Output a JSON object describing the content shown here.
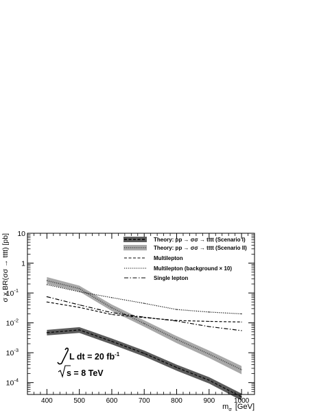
{
  "chart_data": {
    "type": "line",
    "ylabel": "σ x BR(σσ → tttt) [pb]",
    "xlabel": "m",
    "xlabel_sub": "σ",
    "xlabel_unit": "[GeV]",
    "xlim": [
      340,
      1040
    ],
    "ylim": [
      4e-05,
      10
    ],
    "yscale": "log",
    "grid": false,
    "legend_position": "top-right",
    "x_ticks": [
      400,
      500,
      600,
      700,
      800,
      900,
      1000
    ],
    "x_tick_labels": [
      "400",
      "500",
      "600",
      "700",
      "800",
      "900",
      "1000"
    ],
    "y_ticks": [
      10,
      1,
      0.1,
      0.01,
      0.001,
      0.0001
    ],
    "y_tick_labels": [
      "10",
      "1",
      "10-1",
      "10-2",
      "10-3",
      "10-4"
    ],
    "annotation_lumi": "L dt = 20 fb",
    "annotation_lumi_sup": "-1",
    "annotation_energy": "s = 8 TeV",
    "series": [
      {
        "name": "Theory: pp → σσ → tttt (Scenario I)",
        "style": "band-dashed",
        "band_color": "#5c5c5c",
        "line_color": "#000000",
        "x": [
          400,
          500,
          600,
          700,
          800,
          900,
          1000
        ],
        "center": [
          0.0047,
          0.0058,
          0.0024,
          0.00095,
          0.00032,
          0.00012,
          3.3e-05
        ],
        "low": [
          0.0038,
          0.0046,
          0.0019,
          0.00075,
          0.00025,
          9.3e-05,
          2.5e-05
        ],
        "high": [
          0.0058,
          0.0072,
          0.003,
          0.00118,
          0.0004,
          0.000152,
          4.3e-05
        ]
      },
      {
        "name": "Theory: pp → σσ → tttt (Scenario II)",
        "style": "band-dotted",
        "band_color": "#a9a9a9",
        "line_color": "#4a4a4a",
        "x": [
          400,
          500,
          600,
          700,
          800,
          900,
          1000
        ],
        "center": [
          0.26,
          0.14,
          0.032,
          0.0095,
          0.0028,
          0.0009,
          0.00027
        ],
        "low": [
          0.2,
          0.112,
          0.025,
          0.0074,
          0.0021,
          0.00067,
          0.00019
        ],
        "high": [
          0.34,
          0.176,
          0.041,
          0.0122,
          0.0036,
          0.00118,
          0.00036
        ]
      },
      {
        "name": "Multilepton",
        "style": "dashed",
        "line_color": "#000000",
        "x": [
          400,
          500,
          600,
          700,
          800,
          900,
          1000
        ],
        "values": [
          0.05,
          0.033,
          0.019,
          0.015,
          0.012,
          0.0112,
          0.0107
        ]
      },
      {
        "name": "Multilepton (background × 10)",
        "style": "dotted",
        "line_color": "#000000",
        "x": [
          400,
          500,
          600,
          700,
          800,
          900,
          1000
        ],
        "values": [
          0.19,
          0.11,
          0.07,
          0.045,
          0.028,
          0.023,
          0.02
        ]
      },
      {
        "name": "Single lepton",
        "style": "dashdot",
        "line_color": "#000000",
        "x": [
          400,
          500,
          600,
          700,
          800,
          900,
          1000
        ],
        "values": [
          0.075,
          0.04,
          0.022,
          0.0155,
          0.0115,
          0.0075,
          0.0055
        ]
      }
    ]
  }
}
